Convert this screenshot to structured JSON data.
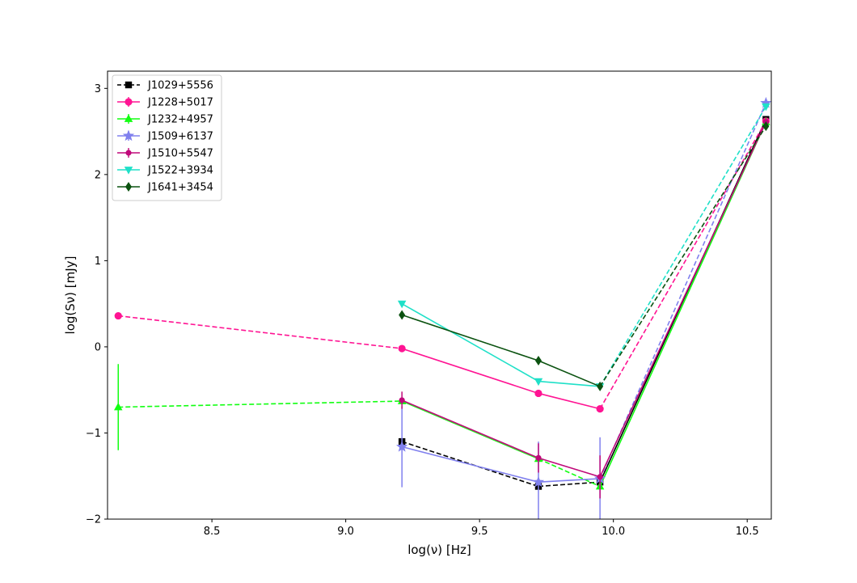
{
  "chart_data": {
    "type": "line",
    "title": "",
    "xlabel": "log(ν) [Hz]",
    "ylabel": "log(Sν) [mJy]",
    "xlim": [
      8.11,
      10.59
    ],
    "ylim": [
      -2.0,
      3.2
    ],
    "xticks": [
      8.5,
      9.0,
      9.5,
      10.0,
      10.5
    ],
    "yticks": [
      -2,
      -1,
      0,
      1,
      2,
      3
    ],
    "xtick_labels": [
      "8.5",
      "9.0",
      "9.5",
      "10.0",
      "10.5"
    ],
    "ytick_labels": [
      "−2",
      "−1",
      "0",
      "1",
      "2",
      "3"
    ],
    "grid": false,
    "legend_position": "top-left",
    "series": [
      {
        "name": "J1029+5556",
        "color": "#000000",
        "marker": "square",
        "legend_style": "dashed",
        "points": [
          {
            "x": 9.21,
            "y": -1.1
          },
          {
            "x": 9.72,
            "y": -1.62
          },
          {
            "x": 9.95,
            "y": -1.57
          },
          {
            "x": 10.57,
            "y": 2.64
          }
        ],
        "errors": [],
        "segments": [
          {
            "from": 0,
            "to": 1,
            "style": "dashed"
          },
          {
            "from": 1,
            "to": 2,
            "style": "dashed"
          },
          {
            "from": 2,
            "to": 3,
            "style": "solid"
          }
        ]
      },
      {
        "name": "J1228+5017",
        "color": "#ff1493",
        "marker": "circle",
        "legend_style": "solid",
        "points": [
          {
            "x": 8.15,
            "y": 0.36
          },
          {
            "x": 9.21,
            "y": -0.02
          },
          {
            "x": 9.72,
            "y": -0.54
          },
          {
            "x": 9.95,
            "y": -0.72
          },
          {
            "x": 10.57,
            "y": 2.62
          }
        ],
        "errors": [
          {
            "index": 0,
            "minus": 0.03,
            "plus": 0.03
          }
        ],
        "segments": [
          {
            "from": 0,
            "to": 1,
            "style": "dashed"
          },
          {
            "from": 1,
            "to": 2,
            "style": "solid"
          },
          {
            "from": 2,
            "to": 3,
            "style": "solid"
          },
          {
            "from": 3,
            "to": 4,
            "style": "dashed"
          }
        ]
      },
      {
        "name": "J1232+4957",
        "color": "#11ff11",
        "marker": "triangle-up",
        "legend_style": "solid",
        "points": [
          {
            "x": 8.15,
            "y": -0.7
          },
          {
            "x": 9.21,
            "y": -0.63
          },
          {
            "x": 9.72,
            "y": -1.3
          },
          {
            "x": 9.95,
            "y": -1.62
          },
          {
            "x": 10.57,
            "y": 2.61
          }
        ],
        "errors": [
          {
            "index": 0,
            "minus": 0.5,
            "plus": 0.5
          }
        ],
        "segments": [
          {
            "from": 0,
            "to": 1,
            "style": "dashed"
          },
          {
            "from": 1,
            "to": 2,
            "style": "solid"
          },
          {
            "from": 2,
            "to": 3,
            "style": "dashed"
          },
          {
            "from": 3,
            "to": 4,
            "style": "solid"
          }
        ]
      },
      {
        "name": "J1509+6137",
        "color": "#8080ee",
        "marker": "star",
        "legend_style": "solid",
        "points": [
          {
            "x": 9.21,
            "y": -1.16
          },
          {
            "x": 9.72,
            "y": -1.57
          },
          {
            "x": 9.95,
            "y": -1.53
          },
          {
            "x": 10.57,
            "y": 2.83
          }
        ],
        "errors": [
          {
            "index": 0,
            "minus": 0.47,
            "plus": 0.47
          },
          {
            "index": 1,
            "minus": 0.45,
            "plus": 0.47
          },
          {
            "index": 2,
            "minus": 0.48,
            "plus": 0.48
          }
        ],
        "segments": [
          {
            "from": 0,
            "to": 1,
            "style": "solid"
          },
          {
            "from": 1,
            "to": 2,
            "style": "solid"
          },
          {
            "from": 2,
            "to": 3,
            "style": "dashed"
          }
        ]
      },
      {
        "name": "J1510+5547",
        "color": "#c0097a",
        "marker": "circle-small",
        "legend_style": "solid",
        "points": [
          {
            "x": 9.21,
            "y": -0.62
          },
          {
            "x": 9.72,
            "y": -1.29
          },
          {
            "x": 9.95,
            "y": -1.51
          },
          {
            "x": 10.57,
            "y": 2.61
          }
        ],
        "errors": [
          {
            "index": 0,
            "minus": 0.1,
            "plus": 0.1
          },
          {
            "index": 1,
            "minus": 0.17,
            "plus": 0.17
          },
          {
            "index": 2,
            "minus": 0.25,
            "plus": 0.25
          }
        ],
        "segments": [
          {
            "from": 0,
            "to": 1,
            "style": "solid"
          },
          {
            "from": 1,
            "to": 2,
            "style": "solid"
          },
          {
            "from": 2,
            "to": 3,
            "style": "solid"
          }
        ]
      },
      {
        "name": "J1522+3934",
        "color": "#1fe0c8",
        "marker": "triangle-down",
        "legend_style": "solid",
        "points": [
          {
            "x": 9.21,
            "y": 0.5
          },
          {
            "x": 9.72,
            "y": -0.4
          },
          {
            "x": 9.95,
            "y": -0.46
          },
          {
            "x": 10.57,
            "y": 2.79
          }
        ],
        "errors": [],
        "segments": [
          {
            "from": 0,
            "to": 1,
            "style": "solid"
          },
          {
            "from": 1,
            "to": 2,
            "style": "solid"
          },
          {
            "from": 2,
            "to": 3,
            "style": "dashed"
          }
        ]
      },
      {
        "name": "J1641+3454",
        "color": "#0b5210",
        "marker": "diamond",
        "legend_style": "solid",
        "points": [
          {
            "x": 9.21,
            "y": 0.37
          },
          {
            "x": 9.72,
            "y": -0.16
          },
          {
            "x": 9.95,
            "y": -0.46
          },
          {
            "x": 10.57,
            "y": 2.56
          }
        ],
        "errors": [],
        "segments": [
          {
            "from": 0,
            "to": 1,
            "style": "solid"
          },
          {
            "from": 1,
            "to": 2,
            "style": "solid"
          },
          {
            "from": 2,
            "to": 3,
            "style": "dashed"
          }
        ]
      }
    ]
  }
}
